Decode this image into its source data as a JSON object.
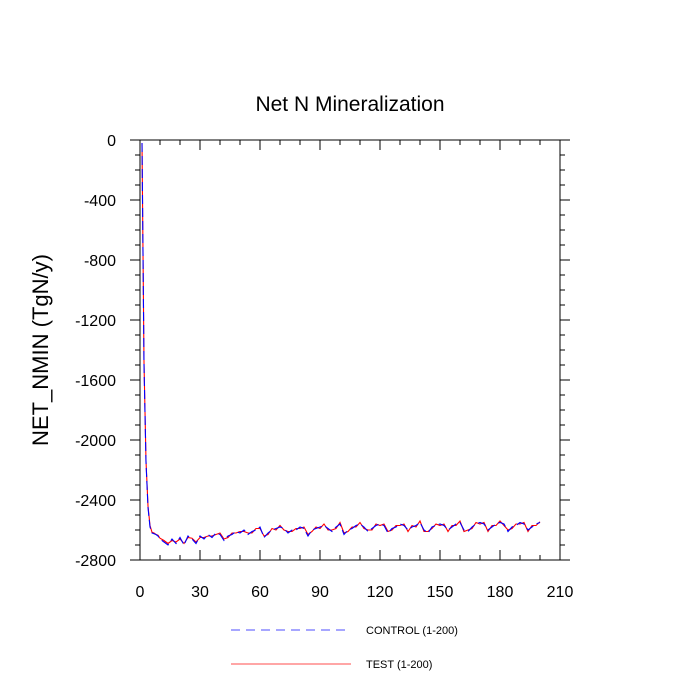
{
  "chart_data": {
    "type": "line",
    "title": "Net N Mineralization",
    "xlabel": "",
    "ylabel": "NET_NMIN  (TgN/y)",
    "xlim": [
      0,
      210
    ],
    "ylim": [
      -2800,
      0
    ],
    "xticks": [
      0,
      30,
      60,
      90,
      120,
      150,
      180,
      210
    ],
    "xtick_labels": [
      "0",
      "30",
      "60",
      "90",
      "120",
      "150",
      "180",
      "210"
    ],
    "yticks": [
      0,
      -400,
      -800,
      -1200,
      -1600,
      -2000,
      -2400,
      -2800
    ],
    "ytick_labels": [
      "0",
      "-400",
      "-800",
      "-1200",
      "-1600",
      "-2000",
      "-2400",
      "-2800"
    ],
    "x_minor_step": 10,
    "y_minor_step": 100,
    "grid": false,
    "legend_position": "bottom-center",
    "series": [
      {
        "name": "CONTROL (1-200)",
        "color": "#0000ff",
        "dash": "dashed",
        "x": [
          1,
          2,
          3,
          4,
          5,
          6,
          7,
          8,
          9,
          10,
          12,
          14,
          16,
          18,
          20,
          22,
          24,
          26,
          28,
          30,
          32,
          34,
          36,
          38,
          40,
          42,
          44,
          46,
          48,
          50,
          52,
          54,
          56,
          58,
          60,
          62,
          64,
          66,
          68,
          70,
          72,
          74,
          76,
          78,
          80,
          82,
          84,
          86,
          88,
          90,
          92,
          94,
          96,
          98,
          100,
          102,
          104,
          106,
          108,
          110,
          112,
          114,
          116,
          118,
          120,
          122,
          124,
          126,
          128,
          130,
          132,
          134,
          136,
          138,
          140,
          142,
          144,
          146,
          148,
          150,
          152,
          154,
          156,
          158,
          160,
          162,
          164,
          166,
          168,
          170,
          172,
          174,
          176,
          178,
          180,
          182,
          184,
          186,
          188,
          190,
          192,
          194,
          196,
          198,
          200
        ],
        "y": [
          -20,
          -1500,
          -2150,
          -2450,
          -2580,
          -2620,
          -2625,
          -2630,
          -2640,
          -2660,
          -2680,
          -2700,
          -2660,
          -2690,
          -2650,
          -2700,
          -2640,
          -2660,
          -2690,
          -2640,
          -2660,
          -2630,
          -2650,
          -2620,
          -2630,
          -2670,
          -2640,
          -2630,
          -2610,
          -2620,
          -2600,
          -2630,
          -2610,
          -2600,
          -2580,
          -2650,
          -2620,
          -2600,
          -2590,
          -2580,
          -2590,
          -2620,
          -2600,
          -2600,
          -2580,
          -2590,
          -2640,
          -2600,
          -2590,
          -2580,
          -2570,
          -2590,
          -2610,
          -2580,
          -2560,
          -2630,
          -2600,
          -2590,
          -2570,
          -2560,
          -2580,
          -2610,
          -2590,
          -2570,
          -2560,
          -2570,
          -2620,
          -2590,
          -2580,
          -2560,
          -2570,
          -2600,
          -2580,
          -2570,
          -2550,
          -2600,
          -2620,
          -2580,
          -2570,
          -2560,
          -2570,
          -2600,
          -2580,
          -2560,
          -2550,
          -2600,
          -2610,
          -2580,
          -2560,
          -2550,
          -2560,
          -2600,
          -2580,
          -2560,
          -2550,
          -2560,
          -2610,
          -2580,
          -2570,
          -2550,
          -2560,
          -2600,
          -2580,
          -2560,
          -2550
        ]
      },
      {
        "name": "TEST (1-200)",
        "color": "#ff0000",
        "dash": "solid",
        "x": [
          1,
          2,
          3,
          4,
          5,
          6,
          7,
          8,
          9,
          10,
          12,
          14,
          16,
          18,
          20,
          22,
          24,
          26,
          28,
          30,
          32,
          34,
          36,
          38,
          40,
          42,
          44,
          46,
          48,
          50,
          52,
          54,
          56,
          58,
          60,
          62,
          64,
          66,
          68,
          70,
          72,
          74,
          76,
          78,
          80,
          82,
          84,
          86,
          88,
          90,
          92,
          94,
          96,
          98,
          100,
          102,
          104,
          106,
          108,
          110,
          112,
          114,
          116,
          118,
          120,
          122,
          124,
          126,
          128,
          130,
          132,
          134,
          136,
          138,
          140,
          142,
          144,
          146,
          148,
          150,
          152,
          154,
          156,
          158,
          160,
          162,
          164,
          166,
          168,
          170,
          172,
          174,
          176,
          178,
          180,
          182,
          184,
          186,
          188,
          190,
          192,
          194,
          196,
          198,
          200
        ],
        "y": [
          -20,
          -1480,
          -2140,
          -2440,
          -2570,
          -2615,
          -2620,
          -2630,
          -2635,
          -2655,
          -2670,
          -2690,
          -2670,
          -2680,
          -2660,
          -2690,
          -2650,
          -2655,
          -2680,
          -2650,
          -2650,
          -2640,
          -2640,
          -2630,
          -2620,
          -2660,
          -2650,
          -2620,
          -2620,
          -2610,
          -2610,
          -2620,
          -2620,
          -2590,
          -2590,
          -2640,
          -2630,
          -2590,
          -2600,
          -2570,
          -2600,
          -2610,
          -2610,
          -2590,
          -2590,
          -2580,
          -2630,
          -2610,
          -2580,
          -2590,
          -2560,
          -2600,
          -2600,
          -2590,
          -2550,
          -2620,
          -2610,
          -2580,
          -2580,
          -2550,
          -2590,
          -2600,
          -2600,
          -2560,
          -2570,
          -2560,
          -2610,
          -2600,
          -2570,
          -2570,
          -2560,
          -2610,
          -2570,
          -2580,
          -2540,
          -2610,
          -2610,
          -2590,
          -2560,
          -2570,
          -2560,
          -2610,
          -2570,
          -2570,
          -2540,
          -2610,
          -2600,
          -2590,
          -2550,
          -2560,
          -2550,
          -2610,
          -2570,
          -2570,
          -2540,
          -2570,
          -2600,
          -2590,
          -2560,
          -2560,
          -2550,
          -2610,
          -2570,
          -2570,
          -2545
        ]
      }
    ]
  }
}
